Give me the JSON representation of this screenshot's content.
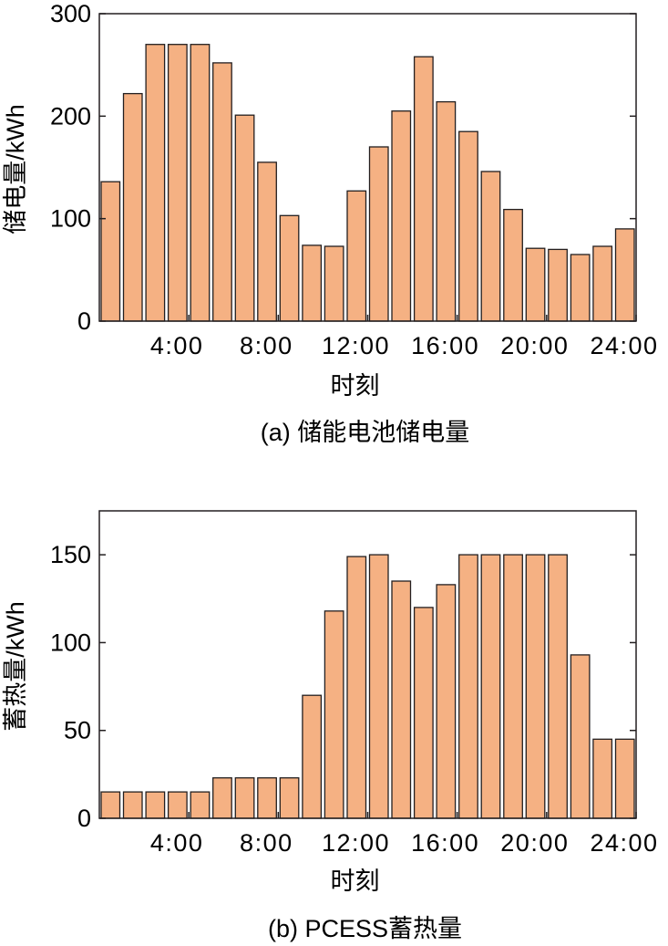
{
  "chart_data": [
    {
      "type": "bar",
      "caption": "(a) 储能电池储电量",
      "xlabel": "时刻",
      "ylabel": "储电量/kWh",
      "ylim": [
        0,
        300
      ],
      "yticks": [
        "0",
        "100",
        "200",
        "300"
      ],
      "xticks": [
        "4:00",
        "8:00",
        "12:00",
        "16:00",
        "20:00",
        "24:00"
      ],
      "bar_color": "#f5b183",
      "values": [
        136,
        222,
        270,
        270,
        270,
        252,
        201,
        155,
        103,
        74,
        73,
        127,
        170,
        205,
        258,
        214,
        185,
        146,
        109,
        71,
        70,
        65,
        73,
        90
      ]
    },
    {
      "type": "bar",
      "caption": "(b) PCESS蓄热量",
      "xlabel": "时刻",
      "ylabel": "蓄热量/kWh",
      "ylim": [
        0,
        175
      ],
      "yticks": [
        "0",
        "50",
        "100",
        "150"
      ],
      "xticks": [
        "4:00",
        "8:00",
        "12:00",
        "16:00",
        "20:00",
        "24:00"
      ],
      "bar_color": "#f5b183",
      "values": [
        15,
        15,
        15,
        15,
        15,
        23,
        23,
        23,
        23,
        70,
        118,
        149,
        150,
        135,
        120,
        133,
        150,
        150,
        150,
        150,
        150,
        93,
        45,
        45
      ]
    }
  ]
}
